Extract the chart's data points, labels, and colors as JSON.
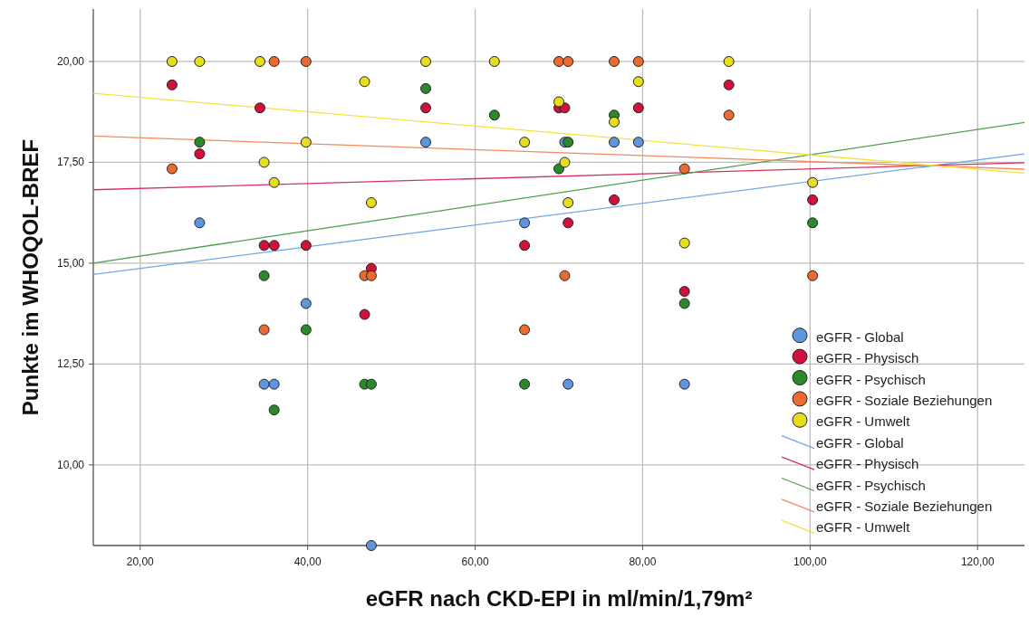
{
  "chart_data": {
    "type": "scatter",
    "xlabel": "eGFR nach CKD-EPI in ml/min/1,79m²",
    "ylabel": "Punkte im WHOQOL-BREF",
    "xlim": [
      14.4,
      125.6
    ],
    "ylim": [
      8,
      21.3
    ],
    "xticks": [
      {
        "value": 20,
        "label": "20,00"
      },
      {
        "value": 40,
        "label": "40,00"
      },
      {
        "value": 60,
        "label": "60,00"
      },
      {
        "value": 80,
        "label": "80,00"
      },
      {
        "value": 100,
        "label": "100,00"
      },
      {
        "value": 120,
        "label": "120,00"
      }
    ],
    "yticks": [
      {
        "value": 10,
        "label": "10,00"
      },
      {
        "value": 12.5,
        "label": "12,50"
      },
      {
        "value": 15,
        "label": "15,00"
      },
      {
        "value": 17.5,
        "label": "17,50"
      },
      {
        "value": 20,
        "label": "20,00"
      }
    ],
    "grid": true,
    "legend": "bottom right",
    "marker": "circle",
    "series": [
      {
        "name": "eGFR - Global",
        "color": "#5f95dc",
        "x": [
          27.1,
          39.8,
          34.8,
          36.0,
          47.6,
          54.1,
          70.7,
          76.6,
          79.5,
          65.9,
          71.1,
          85.0
        ],
        "values": [
          16.0,
          14.0,
          12.0,
          12.0,
          8.0,
          18.0,
          18.0,
          18.0,
          18.0,
          16.0,
          12.0,
          12.0
        ]
      },
      {
        "name": "eGFR - Physisch",
        "color": "#d2103c",
        "x": [
          23.8,
          34.3,
          27.1,
          34.8,
          36.0,
          39.8,
          47.6,
          46.8,
          54.1,
          70.0,
          70.7,
          79.5,
          76.6,
          71.1,
          65.9,
          85.0,
          90.3,
          100.3
        ],
        "values": [
          19.42,
          18.85,
          17.71,
          15.44,
          15.44,
          15.44,
          14.87,
          13.73,
          18.85,
          18.85,
          18.85,
          18.85,
          16.57,
          16.0,
          15.44,
          14.3,
          19.42,
          16.57
        ]
      },
      {
        "name": "eGFR - Psychisch",
        "color": "#2a8a2a",
        "x": [
          27.1,
          34.8,
          39.8,
          46.8,
          47.6,
          36.0,
          54.1,
          62.3,
          76.6,
          71.1,
          70.0,
          85.0,
          65.9,
          100.3
        ],
        "values": [
          18.0,
          14.69,
          13.35,
          12.0,
          12.0,
          11.36,
          19.33,
          18.67,
          18.67,
          18.0,
          17.34,
          14.0,
          12.0,
          16.0
        ]
      },
      {
        "name": "eGFR - Soziale Beziehungen",
        "color": "#ec6a30",
        "x": [
          36.0,
          39.8,
          23.8,
          46.8,
          47.6,
          34.8,
          70.0,
          71.1,
          76.6,
          79.5,
          85.0,
          70.7,
          65.9,
          90.3,
          100.3
        ],
        "values": [
          20.0,
          20.0,
          17.34,
          14.69,
          14.69,
          13.35,
          20.0,
          20.0,
          20.0,
          20.0,
          17.34,
          14.69,
          13.35,
          18.67,
          14.69
        ]
      },
      {
        "name": "eGFR - Umwelt",
        "color": "#e6de1c",
        "x": [
          23.8,
          27.1,
          34.3,
          46.8,
          39.8,
          34.8,
          36.0,
          47.6,
          54.1,
          62.3,
          79.5,
          70.0,
          76.6,
          65.9,
          70.7,
          71.1,
          85.0,
          90.3,
          100.3
        ],
        "values": [
          20.0,
          20.0,
          20.0,
          19.5,
          18.0,
          17.5,
          17.0,
          16.5,
          20.0,
          20.0,
          19.5,
          19.0,
          18.5,
          18.0,
          17.5,
          16.5,
          15.5,
          20.0,
          17.0
        ]
      },
      {
        "name": "eGFR - Global",
        "type": "line",
        "marker": "none",
        "color": "#6fa8e4",
        "x": [
          14.4,
          125.6
        ],
        "values": [
          14.72,
          17.71
        ]
      },
      {
        "name": "eGFR - Physisch",
        "type": "line",
        "marker": "none",
        "color": "#d8305c",
        "x": [
          14.4,
          125.6
        ],
        "values": [
          16.82,
          17.49
        ]
      },
      {
        "name": "eGFR - Psychisch",
        "type": "line",
        "marker": "none",
        "color": "#4ea04e",
        "x": [
          14.4,
          125.6
        ],
        "values": [
          15.0,
          18.49
        ]
      },
      {
        "name": "eGFR - Soziale Beziehungen",
        "type": "line",
        "marker": "none",
        "color": "#f48a5c",
        "x": [
          14.4,
          125.6
        ],
        "values": [
          18.15,
          17.33
        ]
      },
      {
        "name": "eGFR - Umwelt",
        "type": "line",
        "marker": "none",
        "color": "#f0e43c",
        "x": [
          14.4,
          125.6
        ],
        "values": [
          19.21,
          17.23
        ]
      }
    ]
  }
}
